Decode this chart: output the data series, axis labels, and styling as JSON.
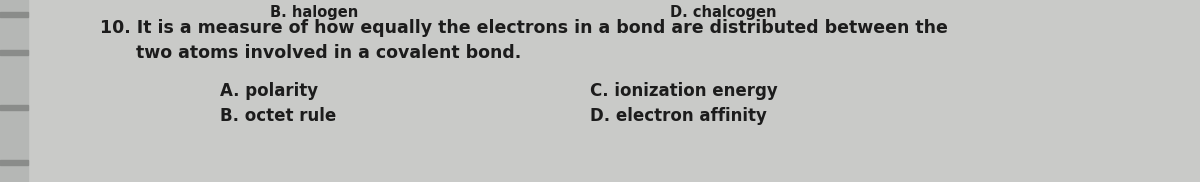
{
  "bg_color": "#c9cac8",
  "top_left_partial": "B. halogen",
  "top_right_partial": "D. chalcogen",
  "question_line1": "10. It is a measure of how equally the electrons in a bond are distributed between the",
  "question_line2": "      two atoms involved in a covalent bond.",
  "option_a": "A. polarity",
  "option_b": "B. octet rule",
  "option_c": "C. ionization energy",
  "option_d": "D. electron affinity",
  "text_color": "#1c1c1c",
  "left_strip_color": "#b5b7b5",
  "notch_color": "#8a8c8a",
  "font_size_top": 10.5,
  "font_size_question": 12.5,
  "font_size_options": 12.0
}
